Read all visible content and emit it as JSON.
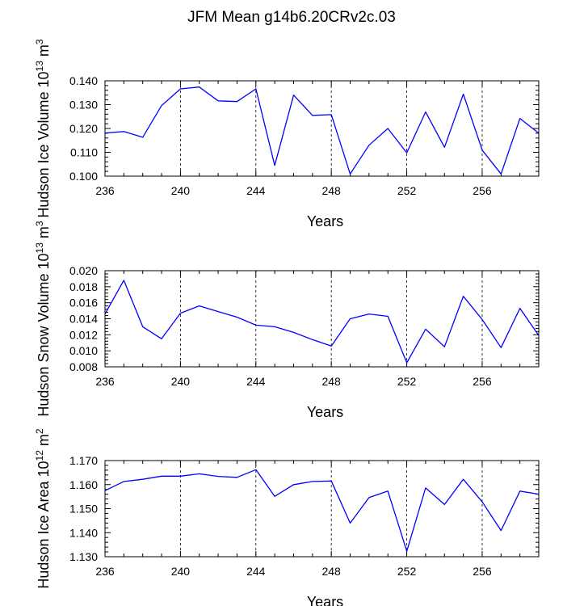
{
  "title": "JFM Mean g14b6.20CRv2c.03",
  "colors": {
    "series": "#0000ff",
    "axis": "#000000",
    "grid": "#000000"
  },
  "chart_data": [
    {
      "type": "line",
      "name": "ice-volume",
      "ylabel": "Hudson Ice Volume 10",
      "ylabel_exp": "13",
      "ylabel_unit": " m",
      "ylabel_unit_exp": "3",
      "xlabel": "Years",
      "xlim": [
        236,
        259
      ],
      "ylim": [
        0.1,
        0.14
      ],
      "xticks": [
        236,
        240,
        244,
        248,
        252,
        256
      ],
      "yticks": [
        "0.100",
        "0.110",
        "0.120",
        "0.130",
        "0.140"
      ],
      "x": [
        236,
        237,
        238,
        239,
        240,
        241,
        242,
        243,
        244,
        245,
        246,
        247,
        248,
        249,
        250,
        251,
        252,
        253,
        254,
        255,
        256,
        257,
        258,
        259
      ],
      "values": [
        0.1181,
        0.1187,
        0.1163,
        0.1296,
        0.1366,
        0.1374,
        0.1316,
        0.1313,
        0.1366,
        0.1045,
        0.134,
        0.1255,
        0.1258,
        0.1009,
        0.113,
        0.12,
        0.1098,
        0.1269,
        0.1121,
        0.1344,
        0.1109,
        0.1009,
        0.1242,
        0.118
      ]
    },
    {
      "type": "line",
      "name": "snow-volume",
      "ylabel": "Hudson Snow Volume 10",
      "ylabel_exp": "13",
      "ylabel_unit": " m",
      "ylabel_unit_exp": "3",
      "xlabel": "Years",
      "xlim": [
        236,
        259
      ],
      "ylim": [
        0.008,
        0.02
      ],
      "xticks": [
        236,
        240,
        244,
        248,
        252,
        256
      ],
      "yticks": [
        "0.008",
        "0.010",
        "0.012",
        "0.014",
        "0.016",
        "0.018",
        "0.020"
      ],
      "x": [
        236,
        237,
        238,
        239,
        240,
        241,
        242,
        243,
        244,
        245,
        246,
        247,
        248,
        249,
        250,
        251,
        252,
        253,
        254,
        255,
        256,
        257,
        258,
        259
      ],
      "values": [
        0.0146,
        0.0188,
        0.013,
        0.0115,
        0.0147,
        0.0156,
        0.0149,
        0.0142,
        0.0132,
        0.013,
        0.0123,
        0.0114,
        0.0106,
        0.014,
        0.0146,
        0.0143,
        0.0085,
        0.0127,
        0.0105,
        0.0168,
        0.0139,
        0.0104,
        0.0153,
        0.0119
      ]
    },
    {
      "type": "line",
      "name": "ice-area",
      "ylabel": "Hudson Ice Area 10",
      "ylabel_exp": "12",
      "ylabel_unit": " m",
      "ylabel_unit_exp": "2",
      "xlabel": "Years",
      "xlim": [
        236,
        259
      ],
      "ylim": [
        1.13,
        1.17
      ],
      "xticks": [
        236,
        240,
        244,
        248,
        252,
        256
      ],
      "yticks": [
        "1.130",
        "1.140",
        "1.150",
        "1.160",
        "1.170"
      ],
      "x": [
        236,
        237,
        238,
        239,
        240,
        241,
        242,
        243,
        244,
        245,
        246,
        247,
        248,
        249,
        250,
        251,
        252,
        253,
        254,
        255,
        256,
        257,
        258,
        259
      ],
      "values": [
        1.1575,
        1.1613,
        1.1622,
        1.1635,
        1.1635,
        1.1645,
        1.1634,
        1.163,
        1.1662,
        1.1551,
        1.16,
        1.1613,
        1.1615,
        1.144,
        1.1546,
        1.1573,
        1.1323,
        1.1586,
        1.1517,
        1.1622,
        1.1528,
        1.1409,
        1.1573,
        1.156
      ]
    }
  ]
}
